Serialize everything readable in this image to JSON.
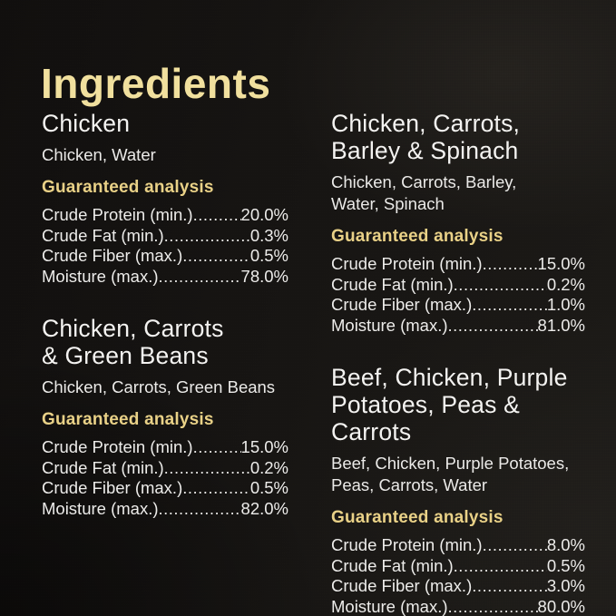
{
  "page": {
    "title": "Ingredients"
  },
  "shared": {
    "analysis_heading": "Guaranteed analysis"
  },
  "colors": {
    "background": "#161412",
    "title_gold": "#F1E09E",
    "heading_gold": "#E9D187",
    "text_white": "#F4F3F1"
  },
  "products": [
    {
      "name": "Chicken",
      "ingredients": "Chicken, Water",
      "analysis": [
        {
          "label": "Crude Protein (min.)",
          "value": "20.0%"
        },
        {
          "label": "Crude Fat (min.)",
          "value": "0.3%"
        },
        {
          "label": "Crude Fiber (max.)",
          "value": "0.5%"
        },
        {
          "label": "Moisture (max.)",
          "value": "78.0%"
        }
      ]
    },
    {
      "name": "Chicken, Carrots\n& Green Beans",
      "ingredients": "Chicken, Carrots, Green Beans",
      "analysis": [
        {
          "label": "Crude Protein (min.)",
          "value": "15.0%"
        },
        {
          "label": "Crude Fat (min.)",
          "value": "0.2%"
        },
        {
          "label": "Crude Fiber (max.)",
          "value": "0.5%"
        },
        {
          "label": "Moisture (max.)",
          "value": "82.0%"
        }
      ]
    },
    {
      "name": "Chicken, Carrots,\nBarley & Spinach",
      "ingredients": "Chicken, Carrots, Barley,\nWater, Spinach",
      "analysis": [
        {
          "label": "Crude Protein (min.)",
          "value": "15.0%"
        },
        {
          "label": "Crude Fat (min.)",
          "value": "0.2%"
        },
        {
          "label": "Crude Fiber (max.)",
          "value": "1.0%"
        },
        {
          "label": "Moisture (max.)",
          "value": "81.0%"
        }
      ]
    },
    {
      "name": "Beef, Chicken, Purple\nPotatoes, Peas & Carrots",
      "ingredients": "Beef, Chicken, Purple Potatoes,\nPeas, Carrots, Water",
      "analysis": [
        {
          "label": "Crude Protein (min.)",
          "value": "8.0%"
        },
        {
          "label": "Crude Fat (min.)",
          "value": "0.5%"
        },
        {
          "label": "Crude Fiber (max.)",
          "value": "3.0%"
        },
        {
          "label": "Moisture (max.)",
          "value": "80.0%"
        }
      ]
    }
  ]
}
